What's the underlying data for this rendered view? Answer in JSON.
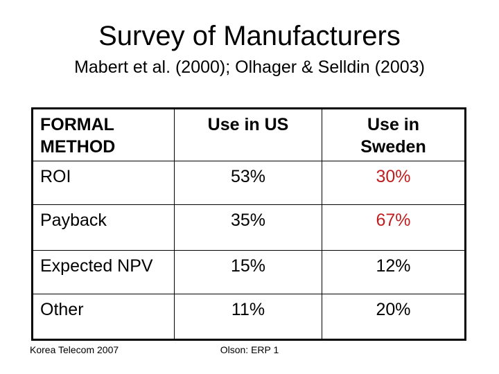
{
  "slide": {
    "title": "Survey of Manufacturers",
    "subtitle": "Mabert et al. (2000); Olhager & Selldin (2003)"
  },
  "table": {
    "columns": [
      "FORMAL\nMETHOD",
      "Use in US",
      "Use in\nSweden"
    ],
    "rows": [
      {
        "method": "ROI",
        "us": "53%",
        "sweden": "30%",
        "sweden_highlight": true
      },
      {
        "method": "Payback",
        "us": "35%",
        "sweden": "67%",
        "sweden_highlight": true
      },
      {
        "method": "Expected NPV",
        "us": "15%",
        "sweden": "12%",
        "sweden_highlight": false
      },
      {
        "method": "Other",
        "us": "11%",
        "sweden": "20%",
        "sweden_highlight": false
      }
    ]
  },
  "footer": {
    "left": "Korea Telecom 2007",
    "center": "Olson: ERP 1"
  },
  "colors": {
    "highlight_red": "#C01E1E",
    "text": "#000000",
    "border": "#000000",
    "background": "#FFFFFF"
  }
}
